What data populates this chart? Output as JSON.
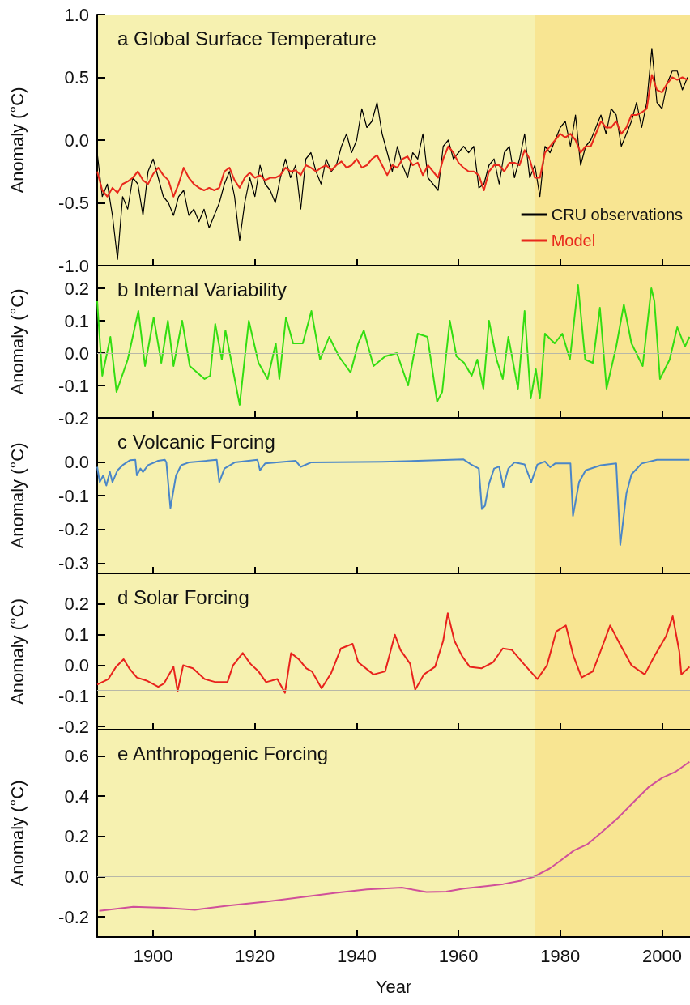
{
  "chart_data": [
    {
      "type": "line",
      "title": "a Global Surface Temperature",
      "ylabel": "Anomaly (°C)",
      "xlim": [
        1889,
        2005.5
      ],
      "xticks": [
        1900,
        1920,
        1940,
        1960,
        1980,
        2000
      ],
      "ylim": [
        -1,
        1
      ],
      "yticks": [
        {
          "value": -1,
          "label": "-1.0"
        },
        {
          "value": -0.5,
          "label": "-0.5"
        },
        {
          "value": 0,
          "label": "0.0"
        },
        {
          "value": 0.5,
          "label": "0.5"
        },
        {
          "value": 1,
          "label": "1.0"
        }
      ],
      "tick_labels": "y",
      "legend": "bottom right",
      "bands": [
        {
          "axis": "x",
          "from": 1889,
          "to": 1975,
          "color": "#f6f1b0"
        },
        {
          "axis": "x",
          "from": 1975,
          "to": 2005.5,
          "color": "#f8e592"
        }
      ],
      "series": [
        {
          "name": "CRU observations",
          "color": "#000000",
          "x": [
            1889,
            1890,
            1891,
            1892,
            1893,
            1894,
            1895,
            1896,
            1897,
            1898,
            1899,
            1900,
            1901,
            1902,
            1903,
            1904,
            1905,
            1906,
            1907,
            1908,
            1909,
            1910,
            1911,
            1912,
            1913,
            1914,
            1915,
            1916,
            1917,
            1918,
            1919,
            1920,
            1921,
            1922,
            1923,
            1924,
            1925,
            1926,
            1927,
            1928,
            1929,
            1930,
            1931,
            1932,
            1933,
            1934,
            1935,
            1936,
            1937,
            1938,
            1939,
            1940,
            1941,
            1942,
            1943,
            1944,
            1945,
            1946,
            1947,
            1948,
            1949,
            1950,
            1951,
            1952,
            1953,
            1954,
            1955,
            1956,
            1957,
            1958,
            1959,
            1960,
            1961,
            1962,
            1963,
            1964,
            1965,
            1966,
            1967,
            1968,
            1969,
            1970,
            1971,
            1972,
            1973,
            1974,
            1975,
            1976,
            1977,
            1978,
            1979,
            1980,
            1981,
            1982,
            1983,
            1984,
            1985,
            1986,
            1987,
            1988,
            1989,
            1990,
            1991,
            1992,
            1993,
            1994,
            1995,
            1996,
            1997,
            1998,
            1999,
            2000,
            2001,
            2002,
            2003,
            2004,
            2005
          ],
          "values": [
            -0.1,
            -0.45,
            -0.35,
            -0.6,
            -0.95,
            -0.45,
            -0.55,
            -0.3,
            -0.35,
            -0.6,
            -0.25,
            -0.15,
            -0.3,
            -0.45,
            -0.5,
            -0.6,
            -0.45,
            -0.4,
            -0.6,
            -0.55,
            -0.65,
            -0.55,
            -0.7,
            -0.6,
            -0.5,
            -0.35,
            -0.25,
            -0.45,
            -0.8,
            -0.5,
            -0.3,
            -0.45,
            -0.2,
            -0.35,
            -0.4,
            -0.5,
            -0.3,
            -0.15,
            -0.3,
            -0.2,
            -0.55,
            -0.15,
            -0.1,
            -0.25,
            -0.35,
            -0.15,
            -0.25,
            -0.2,
            -0.05,
            0.05,
            -0.1,
            0,
            0.25,
            0.1,
            0.15,
            0.3,
            0.05,
            -0.1,
            -0.25,
            -0.05,
            -0.2,
            -0.3,
            -0.1,
            -0.15,
            0.05,
            -0.3,
            -0.35,
            -0.4,
            -0.05,
            0,
            -0.15,
            -0.1,
            -0.05,
            -0.1,
            -0.05,
            -0.38,
            -0.35,
            -0.2,
            -0.15,
            -0.35,
            -0.1,
            -0.05,
            -0.3,
            -0.15,
            0.05,
            -0.3,
            -0.2,
            -0.45,
            -0.05,
            -0.1,
            0,
            0.1,
            0.15,
            -0.05,
            0.2,
            -0.2,
            -0.05,
            0,
            0.1,
            0.2,
            0.05,
            0.25,
            0.2,
            -0.05,
            0.05,
            0.15,
            0.3,
            0.1,
            0.3,
            0.73,
            0.3,
            0.25,
            0.45,
            0.55,
            0.55,
            0.4,
            0.5
          ]
        },
        {
          "name": "Model",
          "color": "#e8291c",
          "x": [
            1889,
            1890,
            1891,
            1892,
            1893,
            1894,
            1895,
            1896,
            1897,
            1898,
            1899,
            1900,
            1901,
            1902,
            1903,
            1904,
            1905,
            1906,
            1907,
            1908,
            1909,
            1910,
            1911,
            1912,
            1913,
            1914,
            1915,
            1916,
            1917,
            1918,
            1919,
            1920,
            1921,
            1922,
            1923,
            1924,
            1925,
            1926,
            1927,
            1928,
            1929,
            1930,
            1931,
            1932,
            1933,
            1934,
            1935,
            1936,
            1937,
            1938,
            1939,
            1940,
            1941,
            1942,
            1943,
            1944,
            1945,
            1946,
            1947,
            1948,
            1949,
            1950,
            1951,
            1952,
            1953,
            1954,
            1955,
            1956,
            1957,
            1958,
            1959,
            1960,
            1961,
            1962,
            1963,
            1964,
            1965,
            1966,
            1967,
            1968,
            1969,
            1970,
            1971,
            1972,
            1973,
            1974,
            1975,
            1976,
            1977,
            1978,
            1979,
            1980,
            1981,
            1982,
            1983,
            1984,
            1985,
            1986,
            1987,
            1988,
            1989,
            1990,
            1991,
            1992,
            1993,
            1994,
            1995,
            1996,
            1997,
            1998,
            1999,
            2000,
            2001,
            2002,
            2003,
            2004,
            2005
          ],
          "values": [
            -0.25,
            -0.4,
            -0.45,
            -0.38,
            -0.42,
            -0.35,
            -0.33,
            -0.3,
            -0.25,
            -0.32,
            -0.35,
            -0.27,
            -0.22,
            -0.28,
            -0.32,
            -0.45,
            -0.35,
            -0.22,
            -0.3,
            -0.35,
            -0.38,
            -0.4,
            -0.38,
            -0.4,
            -0.38,
            -0.25,
            -0.22,
            -0.32,
            -0.38,
            -0.3,
            -0.26,
            -0.3,
            -0.28,
            -0.32,
            -0.3,
            -0.3,
            -0.28,
            -0.22,
            -0.25,
            -0.24,
            -0.28,
            -0.2,
            -0.22,
            -0.25,
            -0.22,
            -0.2,
            -0.24,
            -0.2,
            -0.17,
            -0.22,
            -0.2,
            -0.15,
            -0.22,
            -0.2,
            -0.15,
            -0.12,
            -0.2,
            -0.28,
            -0.2,
            -0.22,
            -0.15,
            -0.13,
            -0.2,
            -0.18,
            -0.28,
            -0.2,
            -0.25,
            -0.3,
            -0.15,
            -0.05,
            -0.1,
            -0.18,
            -0.22,
            -0.25,
            -0.25,
            -0.28,
            -0.4,
            -0.25,
            -0.2,
            -0.2,
            -0.25,
            -0.18,
            -0.18,
            -0.2,
            -0.08,
            -0.15,
            -0.3,
            -0.3,
            -0.1,
            -0.05,
            0,
            0.05,
            0.02,
            0.05,
            0,
            -0.1,
            -0.05,
            -0.05,
            0.05,
            0.15,
            0.1,
            0.1,
            0.15,
            0.05,
            0.1,
            0.2,
            0.2,
            0.22,
            0.25,
            0.52,
            0.4,
            0.38,
            0.45,
            0.5,
            0.48,
            0.5,
            0.48
          ]
        }
      ]
    },
    {
      "type": "line",
      "title": "b Internal Variability",
      "ylabel": "Anomaly (°C)",
      "xlim": [
        1889,
        2005.5
      ],
      "xticks": [
        1900,
        1920,
        1940,
        1960,
        1980,
        2000
      ],
      "ylim": [
        -0.2,
        0.27
      ],
      "yticks": [
        {
          "value": -0.2,
          "label": "-0.2"
        },
        {
          "value": -0.1,
          "label": "-0.1"
        },
        {
          "value": 0,
          "label": "0.0"
        },
        {
          "value": 0.1,
          "label": "0.1"
        },
        {
          "value": 0.2,
          "label": "0.2"
        }
      ],
      "tick_labels": "y",
      "bands": [
        {
          "axis": "x",
          "from": 1889,
          "to": 1975,
          "color": "#f6f1b0"
        },
        {
          "axis": "x",
          "from": 1975,
          "to": 2005.5,
          "color": "#f8e592"
        }
      ],
      "ref_lines": [
        {
          "axis": "y",
          "value": 0,
          "color": "#b8b8a8"
        }
      ],
      "series": [
        {
          "color": "#33dd11",
          "x": [
            1889,
            1890,
            1891.6,
            1892.8,
            1895,
            1897.1,
            1898.4,
            1900.1,
            1901.6,
            1902.9,
            1904,
            1905.7,
            1907.2,
            1910.1,
            1911.2,
            1912.2,
            1913.5,
            1914.2,
            1917,
            1918.8,
            1920.7,
            1922.5,
            1924.1,
            1924.8,
            1926.1,
            1927.5,
            1929.4,
            1931.1,
            1932.8,
            1934.6,
            1936.5,
            1938.8,
            1940.3,
            1941.4,
            1943.3,
            1945.6,
            1947.9,
            1950.1,
            1952,
            1953.9,
            1955.8,
            1956.8,
            1958.3,
            1959.6,
            1961.1,
            1962.6,
            1963.7,
            1964.9,
            1966,
            1967.5,
            1968.7,
            1969.8,
            1971.7,
            1973,
            1974.2,
            1975.2,
            1976,
            1977,
            1978.9,
            1980.4,
            1981.9,
            1983.5,
            1984.9,
            1986.4,
            1987.8,
            1989.1,
            1991,
            1992.5,
            1994,
            1996.2,
            1997.9,
            1998.5,
            1999.6,
            2001.5,
            2003,
            2004.5,
            2005.4
          ],
          "values": [
            0.16,
            -0.07,
            0.05,
            -0.12,
            -0.02,
            0.13,
            -0.04,
            0.11,
            -0.03,
            0.1,
            -0.04,
            0.1,
            -0.04,
            -0.08,
            -0.07,
            0.09,
            -0.02,
            0.07,
            -0.16,
            0.1,
            -0.03,
            -0.08,
            0.03,
            -0.08,
            0.11,
            0.03,
            0.03,
            0.13,
            -0.02,
            0.05,
            -0.01,
            -0.06,
            0.03,
            0.07,
            -0.04,
            -0.01,
            0,
            -0.1,
            0.06,
            0.05,
            -0.15,
            -0.12,
            0.1,
            -0.01,
            -0.03,
            -0.07,
            -0.02,
            -0.11,
            0.1,
            -0.02,
            -0.08,
            0.05,
            -0.11,
            0.13,
            -0.14,
            -0.05,
            -0.14,
            0.06,
            0.03,
            0.06,
            -0.02,
            0.21,
            -0.02,
            -0.03,
            0.14,
            -0.11,
            0.02,
            0.15,
            0.03,
            -0.04,
            0.2,
            0.16,
            -0.08,
            -0.02,
            0.08,
            0.02,
            0.05
          ]
        }
      ]
    },
    {
      "type": "line",
      "title": "c Volcanic Forcing",
      "ylabel": "Anomaly (°C)",
      "xlim": [
        1889,
        2005.5
      ],
      "xticks": [
        1900,
        1920,
        1940,
        1960,
        1980,
        2000
      ],
      "ylim": [
        -0.33,
        0.13
      ],
      "yticks": [
        {
          "value": -0.3,
          "label": "-0.3"
        },
        {
          "value": -0.2,
          "label": "-0.2"
        },
        {
          "value": -0.1,
          "label": "-0.1"
        },
        {
          "value": 0,
          "label": "0.0"
        }
      ],
      "tick_labels": "y",
      "bands": [
        {
          "axis": "x",
          "from": 1889,
          "to": 1975,
          "color": "#f6f1b0"
        },
        {
          "axis": "x",
          "from": 1975,
          "to": 2005.5,
          "color": "#f8e592"
        }
      ],
      "ref_lines": [
        {
          "axis": "y",
          "value": 0,
          "color": "#b8b8a8"
        }
      ],
      "series": [
        {
          "color": "#4a86c8",
          "x": [
            1889,
            1889.5,
            1890.2,
            1890.8,
            1891.5,
            1892,
            1893,
            1894,
            1895.5,
            1896.5,
            1896.8,
            1897.5,
            1898,
            1899,
            1901,
            1902.3,
            1902.6,
            1903.4,
            1904.5,
            1905.5,
            1907,
            1912.5,
            1913,
            1914,
            1916,
            1920.5,
            1921,
            1922,
            1928,
            1929,
            1931,
            1945,
            1961,
            1962.5,
            1964,
            1964.6,
            1965.2,
            1966,
            1967,
            1968,
            1968.8,
            1969.8,
            1971,
            1973,
            1974.3,
            1975.5,
            1977,
            1978,
            1979,
            1982,
            1982.5,
            1983.7,
            1985,
            1988,
            1991,
            1991.8,
            1993,
            1994,
            1996,
            1999,
            2005.4
          ],
          "values": [
            -0.015,
            -0.06,
            -0.04,
            -0.07,
            -0.03,
            -0.06,
            -0.025,
            -0.01,
            0.005,
            0.006,
            -0.04,
            -0.02,
            -0.03,
            -0.01,
            0.003,
            0.006,
            -0.002,
            -0.137,
            -0.04,
            -0.01,
            -0.002,
            0.006,
            -0.06,
            -0.02,
            -0.002,
            0.006,
            -0.025,
            -0.005,
            0.003,
            -0.015,
            -0.002,
            0,
            0.007,
            -0.008,
            -0.02,
            -0.14,
            -0.13,
            -0.065,
            -0.02,
            -0.014,
            -0.075,
            -0.02,
            -0.002,
            -0.008,
            -0.06,
            -0.008,
            0.001,
            -0.016,
            -0.005,
            -0.005,
            -0.16,
            -0.06,
            -0.025,
            -0.01,
            -0.005,
            -0.246,
            -0.094,
            -0.037,
            -0.005,
            0.006,
            0.006
          ]
        }
      ]
    },
    {
      "type": "line",
      "title": "d Solar Forcing",
      "ylabel": "Anomaly (°C)",
      "xlim": [
        1889,
        2005.5
      ],
      "xticks": [
        1900,
        1920,
        1940,
        1960,
        1980,
        2000
      ],
      "ylim": [
        -0.21,
        0.3
      ],
      "yticks": [
        {
          "value": -0.2,
          "label": "-0.2"
        },
        {
          "value": -0.1,
          "label": "-0.1"
        },
        {
          "value": 0,
          "label": "0.0"
        },
        {
          "value": 0.1,
          "label": "0.1"
        },
        {
          "value": 0.2,
          "label": "0.2"
        }
      ],
      "tick_labels": "y",
      "bands": [
        {
          "axis": "x",
          "from": 1889,
          "to": 1975,
          "color": "#f6f1b0"
        },
        {
          "axis": "x",
          "from": 1975,
          "to": 2005.5,
          "color": "#f8e592"
        }
      ],
      "ref_lines": [
        {
          "axis": "y",
          "value": -0.08,
          "color": "#b8b8a8"
        }
      ],
      "series": [
        {
          "color": "#e8221c",
          "x": [
            1889,
            1891.2,
            1892.7,
            1894.2,
            1895.3,
            1896.8,
            1898.7,
            1901,
            1902.1,
            1904,
            1904.8,
            1905.9,
            1907.8,
            1910.1,
            1912.3,
            1914.6,
            1915.7,
            1917.6,
            1919.1,
            1920.7,
            1922.2,
            1924.4,
            1925.9,
            1927.1,
            1928.6,
            1930.1,
            1931.2,
            1933.1,
            1935,
            1936.9,
            1939.2,
            1940.3,
            1943.3,
            1945.6,
            1947.5,
            1948.6,
            1950.5,
            1951.5,
            1953.2,
            1955.4,
            1957,
            1957.9,
            1959.2,
            1960.7,
            1962.2,
            1964.5,
            1966.8,
            1968.7,
            1970.5,
            1972.8,
            1975.5,
            1977.4,
            1979.2,
            1981.1,
            1982.6,
            1984.2,
            1986.4,
            1987.9,
            1989.8,
            1991.7,
            1994,
            1996.6,
            1998.5,
            2000.8,
            2002.1,
            2003.4,
            2003.8,
            2005.4
          ],
          "values": [
            -0.063,
            -0.045,
            -0.005,
            0.02,
            -0.01,
            -0.04,
            -0.05,
            -0.07,
            -0.06,
            -0.005,
            -0.085,
            0,
            -0.01,
            -0.045,
            -0.055,
            -0.055,
            0,
            0.04,
            0.005,
            -0.02,
            -0.055,
            -0.045,
            -0.09,
            0.04,
            0.02,
            -0.01,
            -0.02,
            -0.075,
            -0.025,
            0.055,
            0.07,
            0.01,
            -0.03,
            -0.02,
            0.1,
            0.05,
            0.005,
            -0.08,
            -0.03,
            -0.005,
            0.08,
            0.17,
            0.08,
            0.03,
            -0.005,
            -0.01,
            0.01,
            0.055,
            0.05,
            0.005,
            -0.045,
            0,
            0.11,
            0.13,
            0.03,
            -0.04,
            -0.02,
            0.045,
            0.13,
            0.07,
            0,
            -0.03,
            0.03,
            0.095,
            0.16,
            0.045,
            -0.03,
            -0.005
          ]
        }
      ]
    },
    {
      "type": "line",
      "title": "e Anthropogenic Forcing",
      "xlabel": "Year",
      "ylabel": "Anomaly (°C)",
      "xlim": [
        1889,
        2005.5
      ],
      "xticks": [
        1900,
        1920,
        1940,
        1960,
        1980,
        2000
      ],
      "ylim": [
        -0.3,
        0.73
      ],
      "yticks": [
        {
          "value": -0.2,
          "label": "-0.2"
        },
        {
          "value": 0,
          "label": "0.0"
        },
        {
          "value": 0.2,
          "label": "0.2"
        },
        {
          "value": 0.4,
          "label": "0.4"
        },
        {
          "value": 0.6,
          "label": "0.6"
        }
      ],
      "bands": [
        {
          "axis": "x",
          "from": 1889,
          "to": 1975,
          "color": "#f6f1b0"
        },
        {
          "axis": "x",
          "from": 1975,
          "to": 2005.5,
          "color": "#f8e592"
        }
      ],
      "ref_lines": [
        {
          "axis": "y",
          "value": 0,
          "color": "#b8b8a8"
        }
      ],
      "series": [
        {
          "color": "#d0509a",
          "x": [
            1889.4,
            1896.1,
            1902.2,
            1908.2,
            1915.2,
            1922.1,
            1929,
            1935.9,
            1942,
            1948.9,
            1953.7,
            1957.6,
            1961,
            1965.4,
            1968.8,
            1972.3,
            1974.9,
            1977.9,
            1980.1,
            1982.7,
            1985.3,
            1987.9,
            1991.3,
            1994.8,
            1997.4,
            2000,
            2002.6,
            2005.4
          ],
          "values": [
            -0.17,
            -0.15,
            -0.155,
            -0.165,
            -0.143,
            -0.125,
            -0.103,
            -0.081,
            -0.064,
            -0.055,
            -0.077,
            -0.075,
            -0.06,
            -0.048,
            -0.037,
            -0.02,
            0,
            0.04,
            0.08,
            0.13,
            0.16,
            0.215,
            0.29,
            0.38,
            0.445,
            0.49,
            0.52,
            0.57
          ]
        }
      ]
    }
  ]
}
